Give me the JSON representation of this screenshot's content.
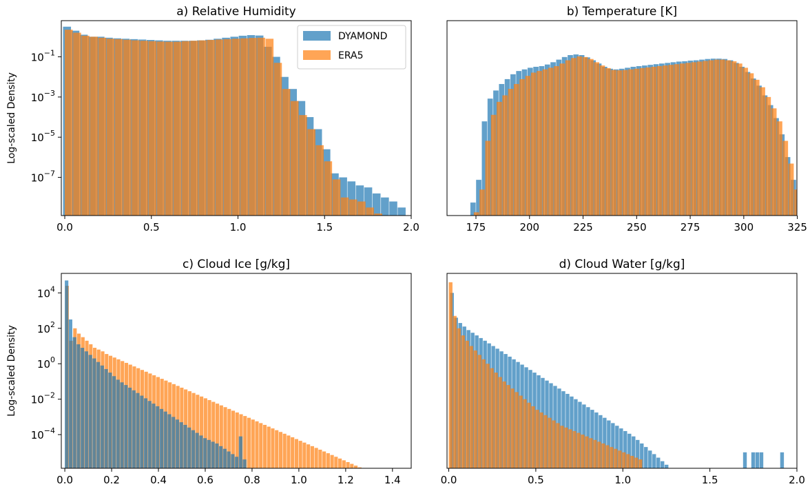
{
  "colors": {
    "dyamond": "#1f77b4",
    "era5": "#ff7f0e"
  },
  "legend": {
    "placement": "top-right",
    "entries": [
      "DYAMOND",
      "ERA5"
    ]
  },
  "chart_data": [
    {
      "type": "bar",
      "title": "a) Relative Humidity",
      "xlabel": "",
      "ylabel": "Log-scaled Density",
      "xlim": [
        -0.02,
        2.0
      ],
      "yscale": "log",
      "ylim_log10": [
        -8.9,
        0.8
      ],
      "xticks": [
        0.0,
        0.5,
        1.0,
        1.5,
        2.0
      ],
      "xtick_labels": [
        "0.0",
        "0.5",
        "1.0",
        "1.5",
        "2.0"
      ],
      "yticks_log10": [
        -1,
        -3,
        -5,
        -7
      ],
      "ytick_exp": [
        "−1",
        "−3",
        "−5",
        "−7"
      ],
      "bin_width": 0.0483,
      "series": [
        {
          "name": "DYAMOND",
          "x_start": -0.01,
          "log10_values": [
            0.5,
            0.3,
            0.1,
            0.0,
            0.0,
            -0.05,
            -0.08,
            -0.1,
            -0.12,
            -0.14,
            -0.16,
            -0.18,
            -0.2,
            -0.2,
            -0.2,
            -0.2,
            -0.18,
            -0.15,
            -0.1,
            -0.05,
            0.0,
            0.05,
            0.08,
            0.06,
            -0.5,
            -1.0,
            -2.0,
            -2.6,
            -3.2,
            -4.0,
            -4.6,
            -5.6,
            -6.8,
            -7.0,
            -7.2,
            -7.4,
            -7.5,
            -7.8,
            -8.0,
            -8.2,
            -8.5,
            -9.0,
            -8.6,
            -9.0,
            -8.8
          ]
        },
        {
          "name": "ERA5",
          "x_start": 0.0,
          "log10_values": [
            0.35,
            0.2,
            0.05,
            0.0,
            -0.05,
            -0.1,
            -0.12,
            -0.15,
            -0.18,
            -0.2,
            -0.22,
            -0.24,
            -0.25,
            -0.25,
            -0.22,
            -0.2,
            -0.18,
            -0.16,
            -0.14,
            -0.12,
            -0.1,
            -0.08,
            -0.06,
            -0.05,
            -0.1,
            -1.3,
            -2.6,
            -3.2,
            -3.9,
            -4.6,
            -5.4,
            -6.2,
            -7.1,
            -8.0,
            -8.1,
            -8.2,
            -8.5,
            -8.8,
            -8.9
          ]
        }
      ]
    },
    {
      "type": "bar",
      "title": "b) Temperature [K]",
      "xlabel": "",
      "ylabel": "",
      "xlim": [
        161.5,
        324.8
      ],
      "yscale": "log",
      "ylim_log10": [
        -6.0,
        0.0
      ],
      "xticks": [
        175,
        200,
        225,
        250,
        275,
        300,
        325
      ],
      "xtick_labels": [
        "175",
        "200",
        "225",
        "250",
        "275",
        "300",
        "325"
      ],
      "yticks_log10": [],
      "ytick_exp": [],
      "bin_width": 2.67,
      "series": [
        {
          "name": "DYAMOND",
          "x_start": 172.4,
          "log10_values": [
            -5.6,
            -4.9,
            -3.1,
            -2.4,
            -2.15,
            -1.95,
            -1.8,
            -1.65,
            -1.55,
            -1.5,
            -1.45,
            -1.42,
            -1.4,
            -1.35,
            -1.28,
            -1.2,
            -1.12,
            -1.06,
            -1.04,
            -1.06,
            -1.13,
            -1.22,
            -1.32,
            -1.42,
            -1.48,
            -1.5,
            -1.48,
            -1.45,
            -1.42,
            -1.4,
            -1.38,
            -1.36,
            -1.34,
            -1.32,
            -1.3,
            -1.28,
            -1.26,
            -1.25,
            -1.23,
            -1.22,
            -1.2,
            -1.18,
            -1.17,
            -1.17,
            -1.18,
            -1.22,
            -1.3,
            -1.42,
            -1.58,
            -1.78,
            -2.0,
            -2.3,
            -2.6,
            -3.0,
            -3.5,
            -4.2,
            -4.9,
            -5.5
          ]
        },
        {
          "name": "ERA5",
          "x_start": 174.0,
          "log10_values": [
            -5.9,
            -5.2,
            -3.7,
            -2.9,
            -2.5,
            -2.3,
            -2.1,
            -1.95,
            -1.8,
            -1.7,
            -1.6,
            -1.55,
            -1.5,
            -1.45,
            -1.4,
            -1.32,
            -1.22,
            -1.15,
            -1.1,
            -1.12,
            -1.18,
            -1.28,
            -1.38,
            -1.46,
            -1.52,
            -1.53,
            -1.52,
            -1.5,
            -1.48,
            -1.46,
            -1.44,
            -1.42,
            -1.4,
            -1.38,
            -1.36,
            -1.34,
            -1.32,
            -1.3,
            -1.28,
            -1.26,
            -1.24,
            -1.22,
            -1.2,
            -1.2,
            -1.22,
            -1.25,
            -1.32,
            -1.45,
            -1.62,
            -1.82,
            -2.05,
            -2.35,
            -2.7,
            -3.1,
            -3.7,
            -4.4,
            -5.2,
            -5.9
          ]
        }
      ]
    },
    {
      "type": "bar",
      "title": "c) Cloud Ice [g/kg]",
      "xlabel": "",
      "ylabel": "Log-scaled Density",
      "xlim": [
        -0.015,
        1.48
      ],
      "yscale": "log",
      "ylim_log10": [
        -5.9,
        5.1
      ],
      "xticks": [
        0.0,
        0.2,
        0.4,
        0.6,
        0.8,
        1.0,
        1.2,
        1.4
      ],
      "xtick_labels": [
        "0.0",
        "0.2",
        "0.4",
        "0.6",
        "0.8",
        "1.0",
        "1.2",
        "1.4"
      ],
      "yticks_log10": [
        4,
        2,
        0,
        -2,
        -4
      ],
      "ytick_exp": [
        "4",
        "2",
        "0",
        "−2",
        "−4"
      ],
      "bin_width": 0.0169,
      "series": [
        {
          "name": "ERA5",
          "x_start": 0.002,
          "log10_values": [
            4.4,
            1.3,
            2.0,
            1.7,
            1.5,
            1.3,
            1.1,
            0.9,
            0.8,
            0.7,
            0.55,
            0.45,
            0.35,
            0.25,
            0.15,
            0.05,
            -0.05,
            -0.15,
            -0.25,
            -0.35,
            -0.45,
            -0.55,
            -0.65,
            -0.75,
            -0.85,
            -0.95,
            -1.05,
            -1.15,
            -1.25,
            -1.35,
            -1.45,
            -1.55,
            -1.65,
            -1.75,
            -1.85,
            -1.95,
            -2.05,
            -2.15,
            -2.25,
            -2.35,
            -2.45,
            -2.55,
            -2.65,
            -2.75,
            -2.85,
            -2.95,
            -3.05,
            -3.15,
            -3.25,
            -3.35,
            -3.45,
            -3.55,
            -3.65,
            -3.75,
            -3.85,
            -3.95,
            -4.05,
            -4.15,
            -4.25,
            -4.35,
            -4.45,
            -4.55,
            -4.65,
            -4.75,
            -4.85,
            -4.95,
            -5.05,
            -5.15,
            -5.25,
            -5.35,
            -5.45,
            -5.55,
            -5.65,
            -5.75,
            -5.85,
            -5.9,
            -5.9,
            -5.9,
            -5.9,
            -5.9,
            -5.9,
            -5.9,
            -5.9,
            -5.9,
            -5.9,
            -5.9
          ]
        },
        {
          "name": "DYAMOND",
          "x_start": 0.0,
          "log10_values": [
            4.7,
            2.5,
            1.5,
            1.1,
            0.9,
            0.7,
            0.5,
            0.3,
            0.1,
            -0.1,
            -0.3,
            -0.5,
            -0.7,
            -0.9,
            -1.05,
            -1.2,
            -1.35,
            -1.5,
            -1.65,
            -1.8,
            -1.95,
            -2.1,
            -2.25,
            -2.4,
            -2.55,
            -2.7,
            -2.85,
            -3.0,
            -3.15,
            -3.3,
            -3.45,
            -3.6,
            -3.75,
            -3.9,
            -4.05,
            -4.2,
            -4.3,
            -4.4,
            -4.5,
            -4.65,
            -4.8,
            -4.95,
            -5.1,
            -5.25,
            -4.1,
            -5.4
          ]
        }
      ]
    },
    {
      "type": "bar",
      "title": "d) Cloud Water [g/kg]",
      "xlabel": "",
      "ylabel": "",
      "xlim": [
        -0.01,
        2.0
      ],
      "yscale": "log",
      "ylim_log10": [
        -5.9,
        5.1
      ],
      "xticks": [
        0.0,
        0.5,
        1.0,
        1.5,
        2.0
      ],
      "xtick_labels": [
        "0.0",
        "0.5",
        "1.0",
        "1.5",
        "2.0"
      ],
      "yticks_log10": [],
      "ytick_exp": [],
      "bin_width": 0.0237,
      "series": [
        {
          "name": "DYAMOND",
          "x_start": 0.008,
          "log10_values": [
            4.0,
            2.6,
            2.3,
            2.1,
            1.9,
            1.75,
            1.6,
            1.45,
            1.3,
            1.15,
            1.0,
            0.85,
            0.7,
            0.55,
            0.4,
            0.25,
            0.1,
            -0.05,
            -0.2,
            -0.35,
            -0.5,
            -0.65,
            -0.8,
            -0.95,
            -1.1,
            -1.25,
            -1.4,
            -1.55,
            -1.7,
            -1.85,
            -2.0,
            -2.15,
            -2.3,
            -2.45,
            -2.6,
            -2.75,
            -2.9,
            -3.05,
            -3.2,
            -3.35,
            -3.5,
            -3.65,
            -3.8,
            -3.95,
            -4.1,
            -4.3,
            -4.5,
            -4.7,
            -4.9,
            -5.1,
            -5.3,
            -5.5,
            -5.7,
            -5.9,
            -5.9,
            -5.9,
            -5.9,
            -5.9,
            -5.9,
            -5.9,
            -5.9,
            -5.9,
            -5.9,
            -5.9,
            -5.9,
            -5.9,
            -5.9,
            -5.9,
            -5.9,
            -5.9,
            -5.9,
            -5.0,
            -5.9,
            -5.0,
            -5.0,
            -5.0,
            -5.9,
            -5.9,
            -5.9,
            -5.9,
            -5.0
          ]
        },
        {
          "name": "ERA5",
          "x_start": 0.0,
          "log10_values": [
            4.6,
            2.7,
            2.0,
            1.6,
            1.3,
            1.0,
            0.75,
            0.5,
            0.25,
            0.0,
            -0.25,
            -0.5,
            -0.75,
            -1.0,
            -1.2,
            -1.4,
            -1.6,
            -1.8,
            -2.0,
            -2.2,
            -2.4,
            -2.6,
            -2.75,
            -2.9,
            -3.05,
            -3.2,
            -3.35,
            -3.5,
            -3.6,
            -3.7,
            -3.8,
            -3.9,
            -4.0,
            -4.1,
            -4.2,
            -4.3,
            -4.4,
            -4.5,
            -4.6,
            -4.7,
            -4.8,
            -4.9,
            -5.0,
            -5.1,
            -5.2,
            -5.3,
            -5.4
          ]
        }
      ]
    }
  ]
}
